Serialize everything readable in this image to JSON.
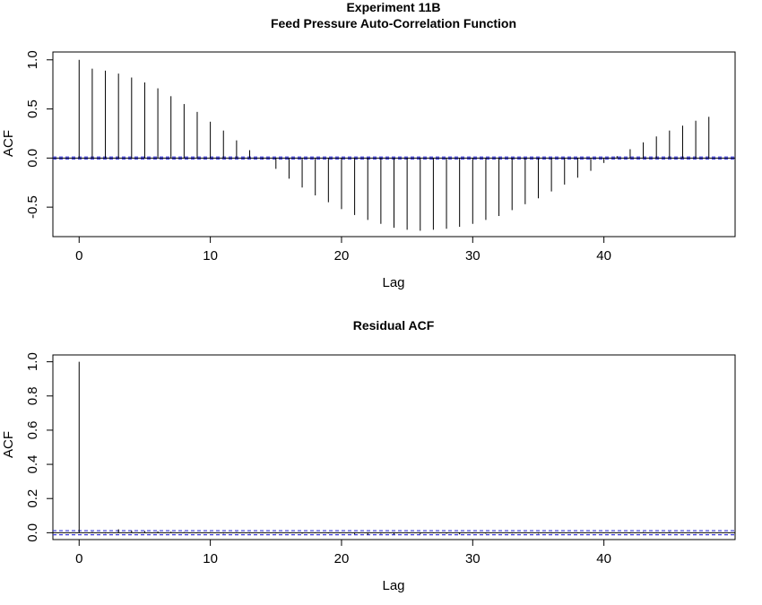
{
  "chart_data": [
    {
      "type": "acf",
      "title_line1": "Experiment 11B",
      "title_line2": "Feed Pressure Auto-Correlation Function",
      "xlabel": "Lag",
      "ylabel": "ACF",
      "xlim": [
        -2,
        50
      ],
      "ylim": [
        -0.8,
        1.08
      ],
      "x_ticks": [
        0,
        10,
        20,
        30,
        40
      ],
      "y_ticks": [
        -0.5,
        0.0,
        0.5,
        1.0
      ],
      "y_tick_labels": [
        "-0.5",
        "0.0",
        "0.5",
        "1.0"
      ],
      "ci": 0.01,
      "ci_color": "#3a3ad8",
      "lags": [
        0,
        1,
        2,
        3,
        4,
        5,
        6,
        7,
        8,
        9,
        10,
        11,
        12,
        13,
        14,
        15,
        16,
        17,
        18,
        19,
        20,
        21,
        22,
        23,
        24,
        25,
        26,
        27,
        28,
        29,
        30,
        31,
        32,
        33,
        34,
        35,
        36,
        37,
        38,
        39,
        40,
        41,
        42,
        43,
        44,
        45,
        46,
        47,
        48
      ],
      "acf": [
        1.0,
        0.91,
        0.89,
        0.86,
        0.82,
        0.77,
        0.71,
        0.63,
        0.55,
        0.47,
        0.37,
        0.28,
        0.18,
        0.08,
        -0.01,
        -0.11,
        -0.21,
        -0.3,
        -0.38,
        -0.45,
        -0.52,
        -0.58,
        -0.63,
        -0.67,
        -0.71,
        -0.73,
        -0.74,
        -0.73,
        -0.72,
        -0.7,
        -0.67,
        -0.63,
        -0.59,
        -0.53,
        -0.47,
        -0.41,
        -0.34,
        -0.27,
        -0.2,
        -0.13,
        -0.05,
        0.02,
        0.09,
        0.16,
        0.22,
        0.28,
        0.33,
        0.38,
        0.42
      ]
    },
    {
      "type": "acf",
      "title": "Residual ACF",
      "xlabel": "Lag",
      "ylabel": "ACF",
      "xlim": [
        -2,
        50
      ],
      "ylim": [
        -0.04,
        1.04
      ],
      "x_ticks": [
        0,
        10,
        20,
        30,
        40
      ],
      "y_ticks": [
        0.0,
        0.2,
        0.4,
        0.6,
        0.8,
        1.0
      ],
      "y_tick_labels": [
        "0.0",
        "0.2",
        "0.4",
        "0.6",
        "0.8",
        "1.0"
      ],
      "ci": 0.012,
      "ci_color": "#3a3ad8",
      "lags": [
        0,
        1,
        2,
        3,
        4,
        5,
        6,
        7,
        8,
        9,
        10,
        11,
        12,
        13,
        14,
        15,
        16,
        17,
        18,
        19,
        20,
        21,
        22,
        23,
        24,
        25,
        26,
        27,
        28,
        29,
        30,
        31,
        32,
        33,
        34,
        35,
        36,
        37,
        38,
        39,
        40,
        41,
        42,
        43,
        44,
        45,
        46,
        47,
        48
      ],
      "acf": [
        1.0,
        0.005,
        -0.004,
        0.02,
        0.012,
        0.01,
        0.008,
        0.006,
        0.004,
        -0.003,
        0.003,
        -0.005,
        0.004,
        -0.004,
        0.003,
        -0.004,
        0.002,
        -0.006,
        0.003,
        -0.004,
        0.002,
        -0.008,
        -0.012,
        -0.006,
        -0.01,
        -0.004,
        -0.008,
        -0.003,
        -0.006,
        -0.01,
        -0.004,
        -0.006,
        0.002,
        -0.004,
        0.003,
        -0.005,
        -0.004,
        0.002,
        -0.003,
        0.003,
        -0.002,
        0.002,
        -0.004,
        0.004,
        -0.003,
        0.005,
        -0.002,
        -0.004,
        0.002
      ]
    }
  ]
}
